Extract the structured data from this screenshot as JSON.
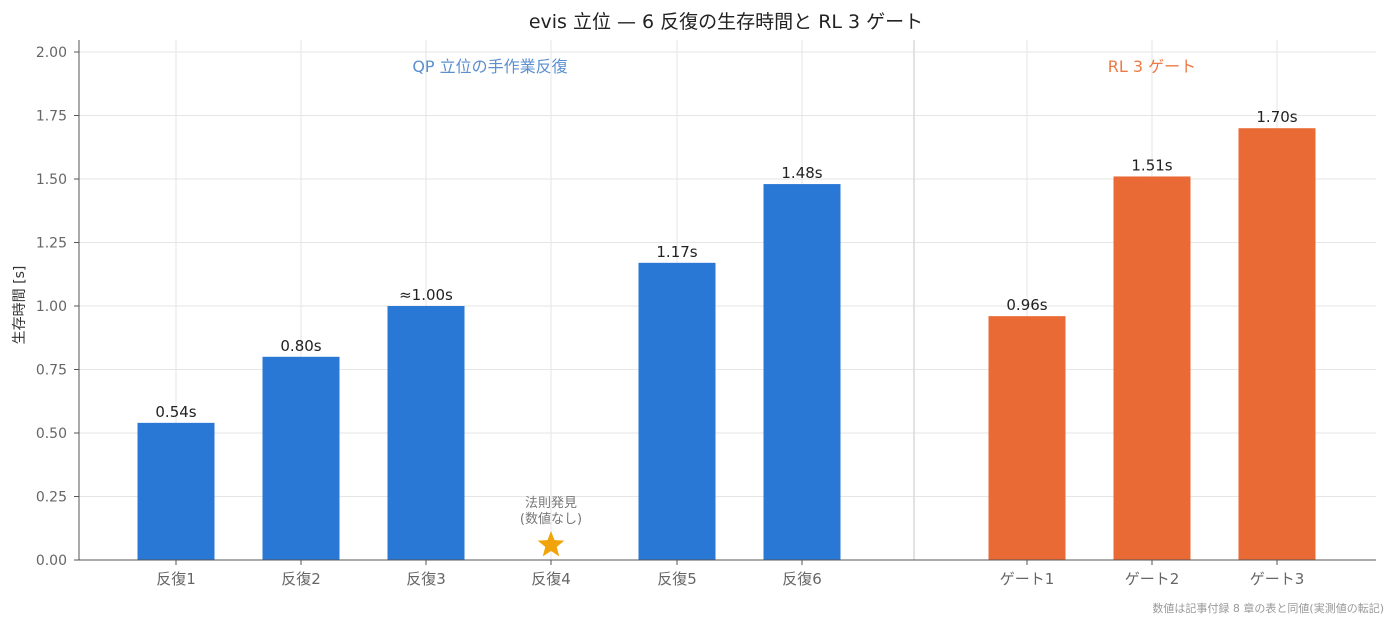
{
  "chart_data": {
    "type": "bar",
    "title": "evis 立位 — 6 反復の生存時間と RL 3 ゲート",
    "ylabel": "生存時間 [s]",
    "ylim": [
      0,
      2.05
    ],
    "yticks": [
      "0.00",
      "0.25",
      "0.50",
      "0.75",
      "1.00",
      "1.25",
      "1.50",
      "1.75",
      "2.00"
    ],
    "grid": true,
    "groups": [
      {
        "label": "QP 立位の手作業反復",
        "color": "#5b8fd0"
      },
      {
        "label": "RL 3 ゲート",
        "color": "#ec7a45"
      }
    ],
    "series": [
      {
        "color": "#2a78d6",
        "categories": [
          "反復1",
          "反復2",
          "反復3",
          "反復4",
          "反復5",
          "反復6"
        ],
        "values": [
          0.54,
          0.8,
          1.0,
          null,
          1.17,
          1.48
        ],
        "labels": [
          "0.54s",
          "0.80s",
          "≈1.00s",
          "",
          "1.17s",
          "1.48s"
        ]
      },
      {
        "color": "#ea6a35",
        "categories": [
          "ゲート1",
          "ゲート2",
          "ゲート3"
        ],
        "values": [
          0.96,
          1.51,
          1.7
        ],
        "labels": [
          "0.96s",
          "1.51s",
          "1.70s"
        ]
      }
    ],
    "annotations": [
      {
        "category": "反復4",
        "marker": "star",
        "color": "#f0a30a",
        "lines": [
          "法則発見",
          "(数値なし)"
        ]
      }
    ]
  },
  "footnote": "数値は記事付録 8 章の表と同値(実測値の転記)"
}
